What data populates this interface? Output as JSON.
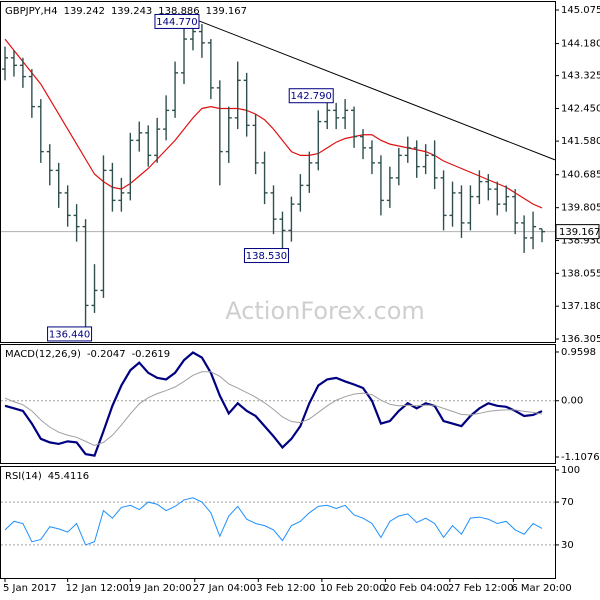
{
  "chart_data": [
    {
      "type": "ohlc",
      "title": "GBPJPY,H4",
      "color": "#2f4f4f",
      "xlim": [
        -0.56,
        61.45
      ],
      "ylim": [
        136.225,
        145.315
      ],
      "yticks": [
        145.075,
        {
          "value": 144.18,
          "label": "144.180"
        },
        143.325,
        {
          "value": 142.45,
          "label": "142.450"
        },
        {
          "value": 141.58,
          "label": "141.580"
        },
        140.685,
        139.805,
        {
          "value": 138.93,
          "label": "138.930"
        },
        138.055,
        {
          "value": 137.18,
          "label": "137.180"
        },
        136.305
      ],
      "open": [
        143.5,
        143.8,
        143.6,
        143.3,
        142.5,
        141.3,
        140.8,
        140.2,
        139.6,
        139.3,
        137.2,
        137.6,
        140.8,
        140.0,
        140.2,
        141.6,
        141.8,
        141.2,
        141.9,
        142.4,
        143.4,
        144.3,
        144.5,
        144.2,
        143.0,
        141.3,
        142.2,
        143.2,
        142.0,
        141.0,
        140.2,
        139.5,
        139.2,
        139.9,
        140.4,
        141.0,
        142.1,
        142.4,
        142.2,
        142.4,
        141.7,
        141.4,
        141.0,
        140.0,
        140.6,
        141.2,
        141.4,
        140.9,
        141.2,
        140.6,
        139.6,
        140.2,
        139.4,
        140.1,
        140.5,
        140.3,
        139.9,
        140.1,
        139.4,
        139.0,
        139.242
      ],
      "high": [
        144.1,
        144.0,
        143.8,
        143.5,
        142.7,
        141.5,
        141.0,
        140.4,
        139.9,
        139.5,
        138.3,
        141.2,
        141.0,
        140.6,
        141.8,
        142.1,
        142.0,
        142.2,
        142.8,
        143.7,
        144.6,
        144.77,
        144.7,
        144.3,
        143.2,
        142.5,
        143.7,
        143.4,
        142.3,
        141.3,
        140.4,
        139.7,
        140.1,
        140.7,
        141.3,
        142.4,
        142.79,
        142.6,
        142.7,
        142.5,
        141.9,
        141.6,
        141.2,
        140.9,
        141.4,
        141.7,
        141.6,
        141.5,
        141.6,
        140.8,
        140.5,
        140.4,
        140.4,
        140.8,
        140.7,
        140.5,
        140.4,
        140.3,
        139.6,
        139.7,
        139.243
      ],
      "low": [
        143.2,
        143.3,
        143.0,
        142.2,
        141.0,
        140.4,
        139.8,
        139.3,
        138.9,
        136.44,
        137.0,
        137.4,
        139.7,
        139.7,
        140.0,
        141.3,
        140.9,
        141.0,
        141.6,
        142.2,
        143.1,
        144.0,
        143.8,
        142.7,
        140.4,
        141.0,
        141.9,
        141.7,
        140.7,
        139.9,
        139.1,
        138.53,
        138.9,
        139.7,
        140.2,
        140.8,
        141.9,
        141.9,
        141.9,
        141.4,
        141.1,
        140.7,
        139.6,
        139.8,
        140.4,
        141.0,
        140.6,
        140.7,
        140.3,
        139.2,
        139.3,
        139.0,
        139.2,
        139.9,
        140.0,
        139.6,
        139.7,
        139.1,
        138.6,
        138.7,
        138.886
      ],
      "close": [
        143.8,
        143.6,
        143.3,
        142.5,
        141.3,
        140.8,
        140.2,
        139.6,
        139.3,
        137.2,
        137.6,
        140.8,
        140.0,
        140.2,
        141.6,
        141.8,
        141.2,
        141.9,
        142.4,
        143.4,
        144.3,
        144.5,
        144.2,
        143.0,
        141.3,
        142.2,
        143.2,
        142.0,
        141.0,
        140.2,
        139.5,
        139.2,
        139.9,
        140.4,
        141.0,
        142.1,
        142.4,
        142.2,
        142.4,
        141.7,
        141.4,
        141.0,
        140.0,
        140.6,
        141.2,
        141.4,
        140.9,
        141.2,
        140.6,
        139.6,
        140.2,
        139.4,
        140.1,
        140.5,
        140.3,
        139.9,
        140.1,
        139.4,
        139.0,
        139.3,
        139.167
      ],
      "ma": {
        "color": "#e01010",
        "values": [
          144.3,
          144.0,
          143.7,
          143.4,
          143.1,
          142.7,
          142.3,
          141.9,
          141.5,
          141.1,
          140.7,
          140.5,
          140.35,
          140.3,
          140.45,
          140.65,
          140.85,
          141.1,
          141.35,
          141.6,
          141.9,
          142.2,
          142.45,
          142.5,
          142.45,
          142.45,
          142.45,
          142.4,
          142.3,
          142.15,
          141.9,
          141.6,
          141.3,
          141.2,
          141.2,
          141.25,
          141.4,
          141.55,
          141.65,
          141.7,
          141.75,
          141.75,
          141.6,
          141.5,
          141.45,
          141.4,
          141.35,
          141.3,
          141.2,
          141.05,
          140.95,
          140.85,
          140.75,
          140.65,
          140.55,
          140.45,
          140.35,
          140.2,
          140.05,
          139.9,
          139.8
        ]
      },
      "trendline": {
        "color": "#000000",
        "x": [
          20,
          61.45
        ],
        "values": [
          144.94,
          141.08
        ]
      },
      "annotations": [
        {
          "x": 21,
          "value": 144.77,
          "label": "144.770"
        },
        {
          "x": 36,
          "value": 142.79,
          "label": "142.790"
        },
        {
          "x": 31,
          "value": 138.53,
          "label": "138.530"
        },
        {
          "x": 9,
          "value": 136.44,
          "label": "136.440"
        }
      ]
    },
    {
      "type": "line",
      "title": "MACD(12,26,9)",
      "xlim": [
        -0.56,
        61.45
      ],
      "ylim": [
        -1.226,
        1.117
      ],
      "yticks": [
        0.9598,
        {
          "value": 0,
          "label": "0.00"
        },
        -1.1076
      ],
      "levels": [
        0
      ],
      "series": [
        {
          "color": "#000080",
          "width": 2.2,
          "values": [
            -0.1,
            -0.15,
            -0.2,
            -0.45,
            -0.75,
            -0.82,
            -0.85,
            -0.8,
            -0.82,
            -1.05,
            -1.08,
            -0.6,
            -0.1,
            0.3,
            0.6,
            0.75,
            0.55,
            0.45,
            0.42,
            0.55,
            0.8,
            0.95,
            0.85,
            0.55,
            0.1,
            -0.25,
            -0.05,
            -0.2,
            -0.3,
            -0.5,
            -0.7,
            -0.92,
            -0.75,
            -0.5,
            -0.05,
            0.3,
            0.42,
            0.45,
            0.38,
            0.32,
            0.25,
            0.0,
            -0.45,
            -0.4,
            -0.2,
            -0.05,
            -0.15,
            -0.05,
            -0.1,
            -0.4,
            -0.45,
            -0.5,
            -0.3,
            -0.15,
            -0.05,
            -0.1,
            -0.12,
            -0.2,
            -0.3,
            -0.28,
            -0.2047
          ]
        },
        {
          "color": "#a0a0a0",
          "width": 1,
          "values": [
            0.05,
            -0.02,
            -0.08,
            -0.2,
            -0.38,
            -0.52,
            -0.62,
            -0.68,
            -0.72,
            -0.8,
            -0.88,
            -0.82,
            -0.68,
            -0.48,
            -0.26,
            -0.06,
            0.06,
            0.14,
            0.2,
            0.27,
            0.38,
            0.5,
            0.57,
            0.57,
            0.48,
            0.33,
            0.25,
            0.16,
            0.07,
            -0.04,
            -0.17,
            -0.32,
            -0.41,
            -0.43,
            -0.36,
            -0.23,
            -0.1,
            0.01,
            0.08,
            0.13,
            0.15,
            0.12,
            0.01,
            -0.07,
            -0.1,
            -0.09,
            -0.1,
            -0.09,
            -0.09,
            -0.15,
            -0.21,
            -0.27,
            -0.28,
            -0.25,
            -0.21,
            -0.19,
            -0.18,
            -0.18,
            -0.21,
            -0.23,
            -0.2619
          ]
        }
      ]
    },
    {
      "type": "line",
      "title": "RSI(14)",
      "xlim": [
        -0.56,
        61.45
      ],
      "ylim": [
        -0.9,
        103.7
      ],
      "yticks": [
        100,
        70,
        30
      ],
      "levels": [
        70,
        30
      ],
      "xticks": [
        {
          "value": 0,
          "label": "5 Jan 2017"
        },
        {
          "value": 7,
          "label": "12 Jan 12:00"
        },
        {
          "value": 14,
          "label": "19 Jan 20:00"
        },
        {
          "value": 21.2,
          "label": "27 Jan 04:00"
        },
        {
          "value": 28.3,
          "label": "3 Feb 12:00"
        },
        {
          "value": 35.4,
          "label": "10 Feb 20:00"
        },
        {
          "value": 42.5,
          "label": "20 Feb 04:00"
        },
        {
          "value": 49.7,
          "label": "27 Feb 12:00"
        },
        {
          "value": 56.8,
          "label": "6 Mar 20:00"
        }
      ],
      "series": [
        {
          "color": "#1e90ff",
          "width": 1,
          "values": [
            44,
            52,
            50,
            33,
            35,
            47,
            45,
            42,
            50,
            30,
            33,
            62,
            55,
            65,
            67,
            63,
            70,
            68,
            62,
            66,
            72,
            74,
            70,
            60,
            38,
            57,
            66,
            54,
            50,
            48,
            44,
            34,
            48,
            52,
            60,
            66,
            67,
            64,
            67,
            58,
            55,
            50,
            37,
            52,
            57,
            59,
            51,
            55,
            50,
            37,
            48,
            40,
            55,
            56,
            54,
            50,
            52,
            44,
            40,
            50,
            45.4116
          ]
        }
      ]
    }
  ],
  "watermark": "ActionForex.com"
}
